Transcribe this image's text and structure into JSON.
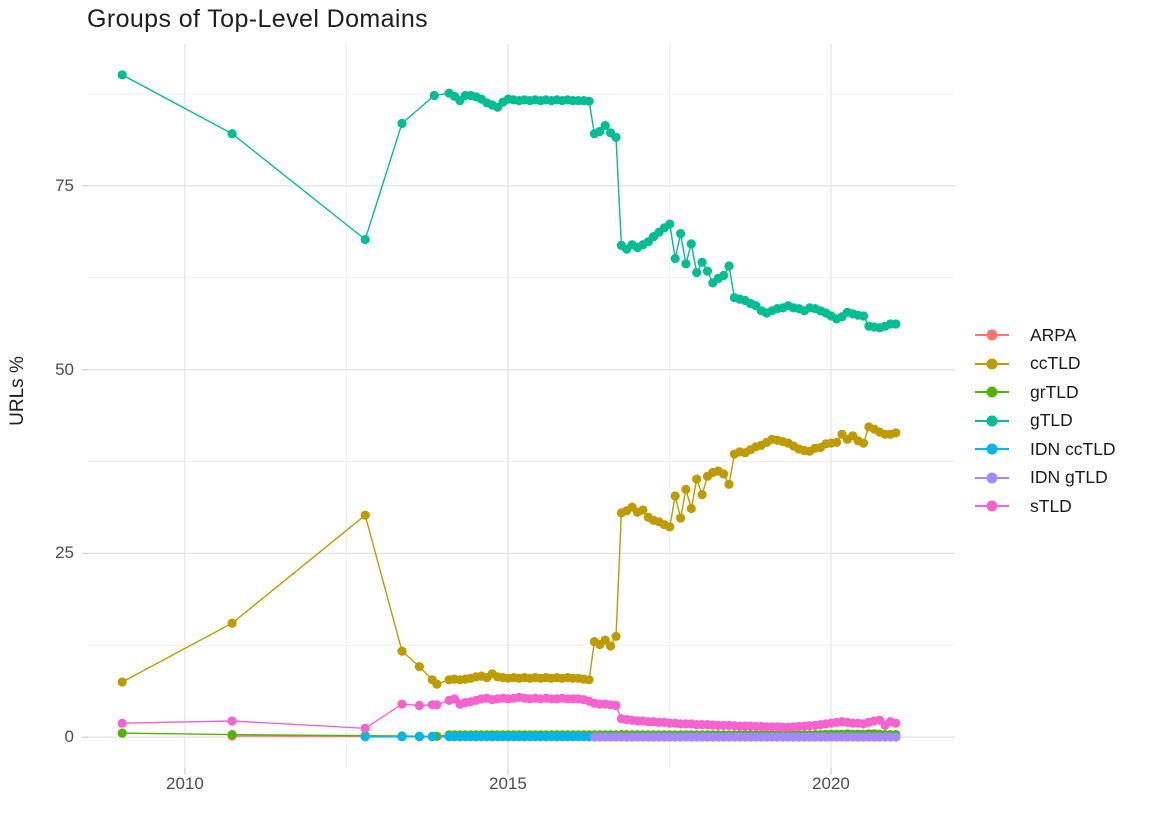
{
  "title": "Groups of Top-Level Domains",
  "axes": {
    "y_label": "URLs %"
  },
  "style": {
    "background": "#FFFFFF",
    "grid_major": "#E4E4E4",
    "grid_minor": "#F1F1F1",
    "tick_mark": "#D6D6D6",
    "tick_text": "#4D4D4D",
    "title_text": "#1F1F1F"
  },
  "chart_data": {
    "type": "line",
    "title": "Groups of Top-Level Domains",
    "xlabel": "",
    "ylabel": "URLs %",
    "grid": true,
    "legend_position": "right",
    "x_range": [
      2008.5,
      2021.92
    ],
    "y_range": [
      -4.2,
      94.3
    ],
    "x_major": [
      2010,
      2015,
      2020
    ],
    "x_labels": [
      "2010",
      "2015",
      "2020"
    ],
    "x_minor": [
      2012.5,
      2017.5
    ],
    "y_major": [
      0,
      25,
      50,
      75
    ],
    "y_labels": [
      "0",
      "25",
      "50",
      "75"
    ],
    "y_minor": [
      12.5,
      37.5,
      62.5,
      87.5
    ],
    "marker_radius": 4.6,
    "line_width": 1.4,
    "series": [
      {
        "name": "ARPA",
        "color": "#F8766D",
        "pre": [
          [
            2010.73,
            0.15
          ],
          [
            2012.79,
            0.1
          ],
          [
            2013.36,
            0.08
          ],
          [
            2013.63,
            0.06
          ],
          [
            2013.83,
            0.05
          ]
        ],
        "start": 2014.09,
        "step": 0.0833,
        "values": [
          0.05,
          0.05,
          0.05,
          0.05,
          0.05,
          0.05,
          0.05,
          0.05,
          0.05,
          0.05,
          0.05,
          0.05,
          0.05,
          0.05,
          0.05,
          0.05,
          0.05,
          0.05,
          0.05,
          0.05,
          0.05,
          0.05,
          0.05,
          0.05,
          0.05,
          0.05,
          0.05,
          0.05,
          0.05,
          0.05,
          0.05,
          0.05,
          0.05,
          0.05,
          0.05,
          0.05,
          0.05,
          0.05,
          0.05,
          0.05,
          0.05,
          0.05,
          0.05,
          0.05,
          0.05,
          0.05,
          0.05,
          0.05,
          0.05,
          0.05,
          0.05,
          0.05,
          0.05,
          0.05,
          0.05,
          0.05,
          0.05,
          0.05,
          0.05,
          0.05,
          0.05,
          0.05,
          0.05,
          0.05,
          0.05,
          0.05,
          0.05,
          0.05,
          0.05,
          0.05,
          0.05,
          0.05,
          0.05,
          0.05,
          0.05,
          0.05,
          0.05,
          0.05,
          0.05,
          0.05,
          0.05,
          0.05,
          0.05,
          0.05
        ]
      },
      {
        "name": "ccTLD",
        "color": "#BE9C00",
        "pre": [
          [
            2009.03,
            7.5
          ],
          [
            2010.73,
            15.5
          ],
          [
            2012.79,
            30.2
          ],
          [
            2013.36,
            11.7
          ],
          [
            2013.63,
            9.6
          ],
          [
            2013.83,
            7.8
          ],
          [
            2013.9,
            7.2
          ]
        ],
        "start": 2014.09,
        "step": 0.0833,
        "values": [
          7.8,
          7.9,
          7.8,
          7.9,
          8.0,
          8.2,
          8.3,
          8.1,
          8.6,
          8.2,
          8.1,
          8.0,
          8.1,
          8.0,
          8.1,
          8.0,
          8.1,
          8.0,
          8.1,
          8.0,
          8.1,
          8.0,
          8.1,
          8.0,
          8.0,
          7.9,
          7.8,
          13.0,
          12.6,
          13.2,
          12.4,
          13.7,
          30.5,
          30.8,
          31.3,
          30.6,
          30.9,
          29.9,
          29.5,
          29.3,
          28.9,
          28.6,
          32.8,
          29.8,
          33.7,
          31.1,
          35.1,
          33.0,
          35.5,
          36.0,
          36.2,
          35.8,
          34.4,
          38.5,
          38.8,
          38.7,
          39.1,
          39.5,
          39.7,
          40.1,
          40.5,
          40.4,
          40.2,
          40.0,
          39.6,
          39.2,
          39.0,
          38.9,
          39.3,
          39.4,
          39.9,
          40.0,
          40.1,
          41.2,
          40.5,
          41.0,
          40.3,
          40.0,
          42.2,
          41.9,
          41.5,
          41.2,
          41.2,
          41.4
        ]
      },
      {
        "name": "grTLD",
        "color": "#53B400",
        "pre": [
          [
            2009.03,
            0.55
          ],
          [
            2010.73,
            0.35
          ],
          [
            2012.79,
            0.2
          ],
          [
            2013.36,
            0.15
          ],
          [
            2013.63,
            0.12
          ],
          [
            2013.83,
            0.1
          ],
          [
            2013.9,
            0.1
          ]
        ],
        "start": 2014.09,
        "step": 0.0833,
        "values": [
          0.3,
          0.3,
          0.3,
          0.3,
          0.3,
          0.3,
          0.3,
          0.3,
          0.3,
          0.3,
          0.3,
          0.3,
          0.3,
          0.3,
          0.3,
          0.3,
          0.3,
          0.3,
          0.3,
          0.3,
          0.3,
          0.3,
          0.3,
          0.3,
          0.3,
          0.3,
          0.3,
          0.3,
          0.3,
          0.3,
          0.3,
          0.3,
          0.35,
          0.35,
          0.3,
          0.3,
          0.3,
          0.3,
          0.3,
          0.3,
          0.3,
          0.3,
          0.3,
          0.3,
          0.3,
          0.3,
          0.3,
          0.3,
          0.3,
          0.3,
          0.3,
          0.3,
          0.3,
          0.3,
          0.3,
          0.3,
          0.3,
          0.3,
          0.3,
          0.3,
          0.3,
          0.3,
          0.3,
          0.3,
          0.3,
          0.3,
          0.3,
          0.3,
          0.35,
          0.35,
          0.4,
          0.4,
          0.4,
          0.4,
          0.45,
          0.4,
          0.4,
          0.4,
          0.45,
          0.45,
          0.4,
          0.35,
          0.35,
          0.35
        ]
      },
      {
        "name": "gTLD",
        "color": "#00BE92",
        "pre": [
          [
            2009.03,
            90.1
          ],
          [
            2010.73,
            82.1
          ],
          [
            2012.79,
            67.7
          ],
          [
            2013.36,
            83.5
          ],
          [
            2013.86,
            87.3
          ]
        ],
        "start": 2014.09,
        "step": 0.0833,
        "values": [
          87.6,
          87.2,
          86.6,
          87.3,
          87.3,
          87.1,
          86.8,
          86.3,
          86.0,
          85.7,
          86.4,
          86.8,
          86.7,
          86.6,
          86.7,
          86.6,
          86.7,
          86.6,
          86.7,
          86.6,
          86.7,
          86.6,
          86.7,
          86.6,
          86.6,
          86.6,
          86.5,
          82.1,
          82.4,
          83.2,
          82.2,
          81.6,
          66.9,
          66.4,
          67.0,
          66.6,
          67.0,
          67.4,
          68.1,
          68.7,
          69.3,
          69.8,
          65.1,
          68.5,
          64.4,
          67.1,
          63.2,
          64.6,
          63.4,
          61.8,
          62.4,
          62.8,
          64.1,
          59.8,
          59.6,
          59.4,
          59.0,
          58.7,
          58.0,
          57.7,
          58.0,
          58.3,
          58.4,
          58.7,
          58.4,
          58.3,
          58.0,
          58.4,
          58.3,
          58.0,
          57.7,
          57.3,
          56.9,
          57.2,
          57.8,
          57.6,
          57.4,
          57.3,
          55.9,
          55.8,
          55.7,
          55.9,
          56.2,
          56.2
        ]
      },
      {
        "name": "IDN ccTLD",
        "color": "#00B6EB",
        "pre": [
          [
            2012.79,
            0.05
          ],
          [
            2013.36,
            0.06
          ],
          [
            2013.63,
            0.08
          ],
          [
            2013.83,
            0.08
          ]
        ],
        "start": 2014.09,
        "step": 0.0833,
        "values": [
          0.08,
          0.08,
          0.08,
          0.08,
          0.08,
          0.08,
          0.08,
          0.08,
          0.08,
          0.08,
          0.08,
          0.08,
          0.08,
          0.08,
          0.08,
          0.08,
          0.08,
          0.08,
          0.08,
          0.08,
          0.08,
          0.08,
          0.08,
          0.08,
          0.08,
          0.08,
          0.05,
          0.05,
          0.05,
          0.05,
          0.05,
          0.05,
          0.05,
          0.05,
          0.05,
          0.05,
          0.05,
          0.05,
          0.05,
          0.05,
          0.05,
          0.05,
          0.05,
          0.05,
          0.05,
          0.05,
          0.05,
          0.05,
          0.05,
          0.05,
          0.05,
          0.05,
          0.05,
          0.05,
          0.05,
          0.05,
          0.05,
          0.05,
          0.05,
          0.05,
          0.05,
          0.05,
          0.05,
          0.05,
          0.05,
          0.05,
          0.05,
          0.05,
          0.05,
          0.05,
          0.05,
          0.05,
          0.05,
          0.05,
          0.05,
          0.05,
          0.05,
          0.05,
          0.05,
          0.05,
          0.05,
          0.05,
          0.05,
          0.05
        ]
      },
      {
        "name": "IDN gTLD",
        "color": "#A58AFF",
        "pre": [],
        "start": 2016.34,
        "step": 0.0833,
        "values": [
          0.02,
          0.02,
          0.02,
          0.02,
          0.02,
          0.02,
          0.02,
          0.02,
          0.02,
          0.02,
          0.02,
          0.02,
          0.02,
          0.02,
          0.02,
          0.02,
          0.02,
          0.02,
          0.02,
          0.02,
          0.02,
          0.02,
          0.02,
          0.02,
          0.02,
          0.02,
          0.02,
          0.02,
          0.02,
          0.02,
          0.02,
          0.02,
          0.02,
          0.02,
          0.02,
          0.02,
          0.02,
          0.02,
          0.02,
          0.02,
          0.02,
          0.02,
          0.02,
          0.02,
          0.02,
          0.02,
          0.02,
          0.02,
          0.02,
          0.02,
          0.02,
          0.02,
          0.02,
          0.02,
          0.02,
          0.02,
          0.02
        ]
      },
      {
        "name": "sTLD",
        "color": "#F763CE",
        "pre": [
          [
            2009.03,
            1.9
          ],
          [
            2010.73,
            2.2
          ],
          [
            2012.79,
            1.2
          ],
          [
            2013.36,
            4.5
          ],
          [
            2013.63,
            4.3
          ],
          [
            2013.83,
            4.4
          ],
          [
            2013.9,
            4.4
          ]
        ],
        "start": 2014.09,
        "step": 0.0833,
        "values": [
          5.0,
          5.2,
          4.5,
          4.7,
          4.8,
          5.0,
          5.2,
          5.3,
          5.1,
          5.2,
          5.3,
          5.2,
          5.3,
          5.4,
          5.3,
          5.2,
          5.3,
          5.2,
          5.3,
          5.2,
          5.2,
          5.3,
          5.2,
          5.2,
          5.2,
          5.1,
          4.9,
          4.6,
          4.5,
          4.5,
          4.4,
          4.3,
          2.5,
          2.4,
          2.3,
          2.2,
          2.2,
          2.1,
          2.1,
          2.0,
          2.0,
          1.9,
          1.9,
          1.8,
          1.8,
          1.8,
          1.7,
          1.7,
          1.7,
          1.65,
          1.6,
          1.6,
          1.6,
          1.55,
          1.5,
          1.5,
          1.5,
          1.45,
          1.45,
          1.4,
          1.4,
          1.4,
          1.35,
          1.35,
          1.4,
          1.45,
          1.5,
          1.55,
          1.6,
          1.7,
          1.8,
          1.9,
          2.0,
          2.1,
          2.0,
          1.9,
          1.9,
          1.8,
          2.0,
          2.2,
          2.3,
          1.6,
          2.1,
          1.9
        ]
      }
    ]
  }
}
